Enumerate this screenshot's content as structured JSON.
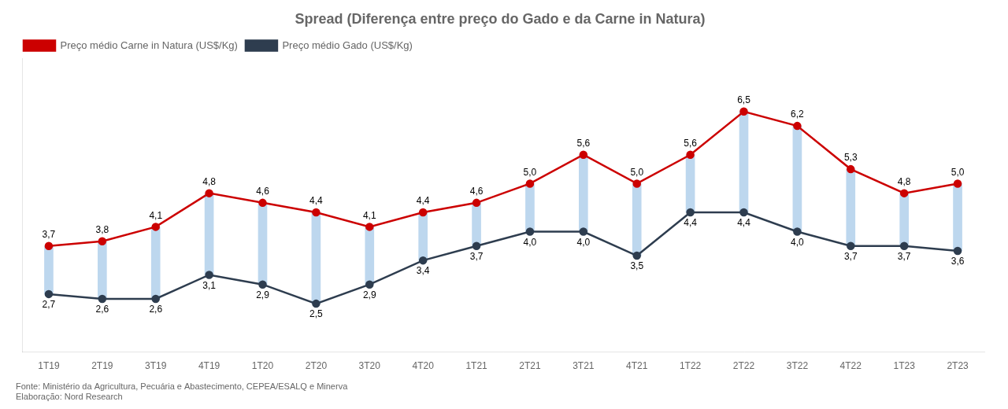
{
  "chart_data": {
    "type": "line",
    "title": "Spread (Diferença entre preço do Gado e da Carne in Natura)",
    "categories": [
      "1T19",
      "2T19",
      "3T19",
      "4T19",
      "1T20",
      "2T20",
      "3T20",
      "4T20",
      "1T21",
      "2T21",
      "3T21",
      "4T21",
      "1T22",
      "2T22",
      "3T22",
      "4T22",
      "1T23",
      "2T23"
    ],
    "series": [
      {
        "name": "Preço médio Carne in Natura (US$/Kg)",
        "type": "line",
        "color": "#CC0000",
        "marker": "o",
        "line_style": "solid",
        "values": [
          3.7,
          3.8,
          4.1,
          4.8,
          4.6,
          4.4,
          4.1,
          4.4,
          4.6,
          5.0,
          5.6,
          5.0,
          5.6,
          6.5,
          6.2,
          5.3,
          4.8,
          5.0
        ],
        "value_labels": [
          "3,7",
          "3,8",
          "4,1",
          "4,8",
          "4,6",
          "4,4",
          "4,1",
          "4,4",
          "4,6",
          "5,0",
          "5,6",
          "5,0",
          "5,6",
          "6,5",
          "6,2",
          "5,3",
          "4,8",
          "5,0"
        ]
      },
      {
        "name": "Preço médio Gado (US$/Kg)",
        "type": "line",
        "color": "#2E3D4F",
        "marker": "o",
        "line_style": "solid",
        "values": [
          2.7,
          2.6,
          2.6,
          3.1,
          2.9,
          2.5,
          2.9,
          3.4,
          3.7,
          4.0,
          4.0,
          3.5,
          4.4,
          4.4,
          4.0,
          3.7,
          3.7,
          3.6
        ],
        "value_labels": [
          "2,7",
          "2,6",
          "2,6",
          "3,1",
          "2,9",
          "2,5",
          "2,9",
          "3,4",
          "3,7",
          "4,0",
          "4,0",
          "3,5",
          "4,4",
          "4,4",
          "4,0",
          "3,7",
          "3,7",
          "3,6"
        ]
      },
      {
        "type": "bar",
        "color": "#BDD7EE",
        "values": [
          [
            2.7,
            3.7
          ],
          [
            2.6,
            3.8
          ],
          [
            2.6,
            4.1
          ],
          [
            3.1,
            4.8
          ],
          [
            2.9,
            4.6
          ],
          [
            2.5,
            4.4
          ],
          [
            2.9,
            4.1
          ],
          [
            3.4,
            4.4
          ],
          [
            3.7,
            4.6
          ],
          [
            4.0,
            5.0
          ],
          [
            4.0,
            5.6
          ],
          [
            3.5,
            5.0
          ],
          [
            4.4,
            5.6
          ],
          [
            4.4,
            6.5
          ],
          [
            4.0,
            6.2
          ],
          [
            3.7,
            5.3
          ],
          [
            3.7,
            4.8
          ],
          [
            3.6,
            5.0
          ]
        ]
      }
    ],
    "annotations": [
      "Fonte: Ministério da Agricultura, Pecuária e Abastecimento, CEPEA/ESALQ e Minerva",
      "Elaboração: Nord Research"
    ],
    "ylim": [
      1.5,
      7.6
    ],
    "tick_labels": "x",
    "grid": false,
    "legend": "upper left",
    "data_labels": true
  }
}
